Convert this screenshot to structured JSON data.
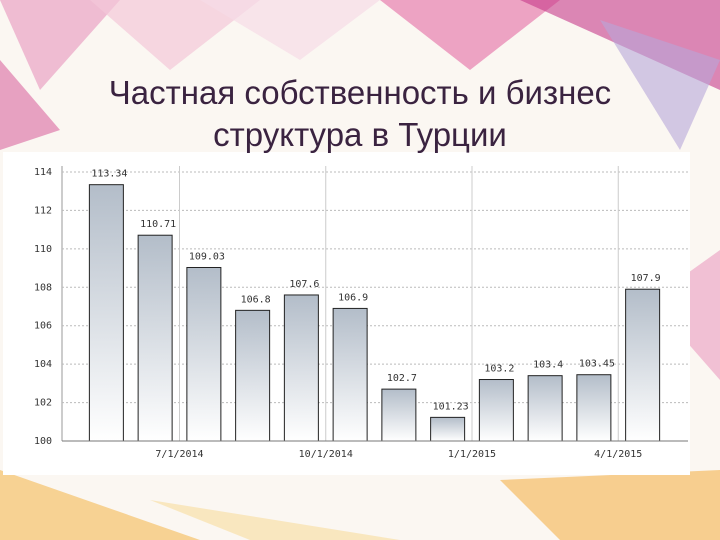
{
  "chart_data": {
    "type": "bar",
    "title": "Частная собственность и бизнес\nструктура в Турции",
    "categories": [
      null,
      null,
      "7/1/2014",
      null,
      null,
      "10/1/2014",
      null,
      null,
      "1/1/2015",
      null,
      null,
      "4/1/2015"
    ],
    "values": [
      113.34,
      110.71,
      109.03,
      106.8,
      107.6,
      106.9,
      102.7,
      101.23,
      103.2,
      103.4,
      103.45,
      107.9
    ],
    "color": "#b9c2cd",
    "ylim": [
      100,
      114
    ],
    "yticks": [
      100,
      102,
      104,
      106,
      108,
      110,
      112,
      114
    ],
    "grid": true
  }
}
